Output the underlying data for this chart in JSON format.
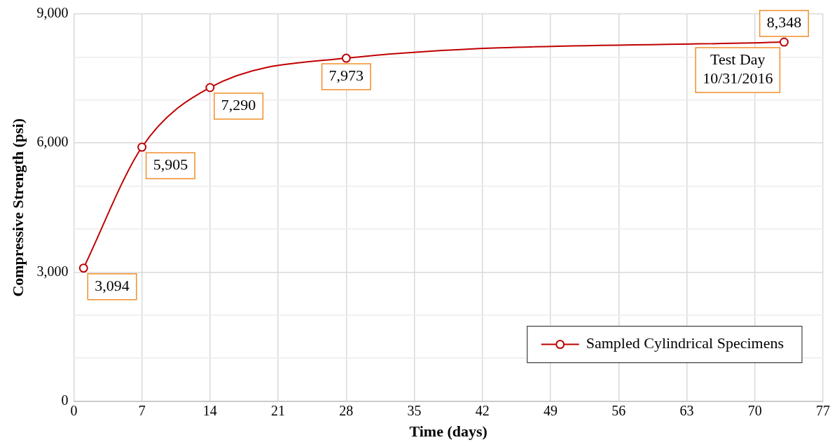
{
  "chart_data": {
    "type": "line",
    "xlabel": "Time (days)",
    "ylabel": "Compressive Strength (psi)",
    "x": [
      1,
      7,
      14,
      28,
      73
    ],
    "series": [
      {
        "name": "Sampled Cylindrical Specimens",
        "color": "#c00000",
        "values": [
          3094,
          5905,
          7290,
          7973,
          8348
        ],
        "value_labels": [
          "3,094",
          "5,905",
          "7,290",
          "7,973",
          "8,348"
        ]
      }
    ],
    "xlim": [
      0,
      77
    ],
    "xticks": [
      0,
      7,
      14,
      21,
      28,
      35,
      42,
      49,
      56,
      63,
      70,
      77
    ],
    "ylim": [
      0,
      9000
    ],
    "yticks": [
      0,
      {
        "value": 1000,
        "label": null
      },
      {
        "value": 2000,
        "label": null
      },
      {
        "value": 3000,
        "label": "3,000"
      },
      {
        "value": 4000,
        "label": null
      },
      {
        "value": 5000,
        "label": null
      },
      {
        "value": 6000,
        "label": "6,000"
      },
      {
        "value": 7000,
        "label": null
      },
      {
        "value": 8000,
        "label": null
      },
      {
        "value": 9000,
        "label": "9,000"
      }
    ],
    "grid": true,
    "legend": "bottom right",
    "marker": "circle",
    "line_style": "solid",
    "annotations": [
      {
        "text": "Test Day\n10/31/2016",
        "x": 73,
        "y": 8348
      }
    ]
  }
}
